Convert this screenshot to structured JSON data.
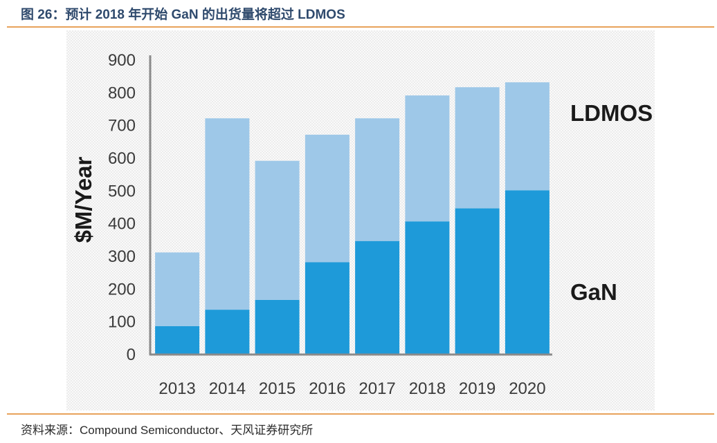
{
  "figure": {
    "title": "图 26：预计 2018 年开始 GaN 的出货量将超过 LDMOS",
    "source": "资料来源：Compound Semiconductor、天风证券研究所"
  },
  "colors": {
    "gan": "#1e9ad9",
    "ldmos": "#9ec8e8",
    "axis": "#8a8a8a",
    "rule": "#e8a25a",
    "title": "#2f4a6d",
    "background_pattern": "#ececec"
  },
  "chart_data": {
    "type": "bar",
    "stacked": true,
    "title": "",
    "xlabel": "",
    "ylabel": "$M/Year",
    "ylim": [
      0,
      900
    ],
    "yticks": [
      0,
      100,
      200,
      300,
      400,
      500,
      600,
      700,
      800,
      900
    ],
    "categories": [
      "2013",
      "2014",
      "2015",
      "2016",
      "2017",
      "2018",
      "2019",
      "2020"
    ],
    "series": [
      {
        "name": "GaN",
        "values": [
          85,
          135,
          165,
          280,
          345,
          405,
          445,
          500
        ]
      },
      {
        "name": "LDMOS",
        "values": [
          225,
          585,
          425,
          390,
          375,
          385,
          370,
          330
        ]
      }
    ],
    "legend": [
      "LDMOS",
      "GaN"
    ],
    "legend_placement": "right, inline beside series"
  }
}
